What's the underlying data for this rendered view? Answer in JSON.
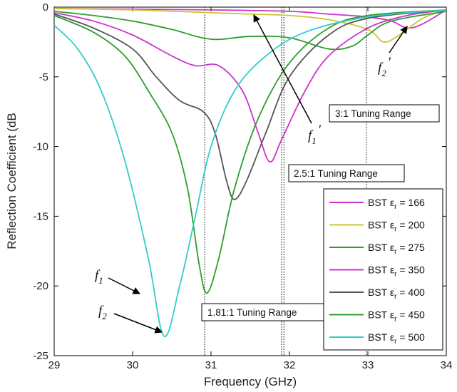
{
  "chart_data": {
    "type": "line",
    "xlabel": "Frequency (GHz)",
    "ylabel": "Reflection Coefficient (dB",
    "xlim": [
      29,
      34
    ],
    "ylim": [
      -25,
      0
    ],
    "xticks": [
      "29",
      "30",
      "31",
      "32",
      "33",
      "34"
    ],
    "yticks": [
      "0",
      "-5",
      "-10",
      "-15",
      "-20",
      "-25"
    ],
    "legend_position": "lower-right",
    "grid": false,
    "series": [
      {
        "name": "BST εr = 166",
        "label_prefix": "BST ε",
        "label_sub": "r",
        "label_suffix": " = 166",
        "color": "#cc33cc",
        "points": [
          [
            29,
            -0.1
          ],
          [
            30,
            -0.15
          ],
          [
            31,
            -0.2
          ],
          [
            32,
            -0.3
          ],
          [
            32.5,
            -0.5
          ],
          [
            33,
            -0.7
          ],
          [
            33.3,
            -1.0
          ],
          [
            33.5,
            -1.5
          ],
          [
            33.7,
            -1.2
          ],
          [
            34,
            -0.2
          ]
        ]
      },
      {
        "name": "BST εr = 200",
        "label_prefix": "BST ε",
        "label_sub": "r",
        "label_suffix": " = 200",
        "color": "#c8c832",
        "points": [
          [
            29,
            -0.1
          ],
          [
            30,
            -0.2
          ],
          [
            31,
            -0.4
          ],
          [
            31.5,
            -0.5
          ],
          [
            32,
            -0.6
          ],
          [
            32.5,
            -0.9
          ],
          [
            33,
            -1.6
          ],
          [
            33.2,
            -2.5
          ],
          [
            33.4,
            -2.0
          ],
          [
            33.7,
            -0.8
          ],
          [
            34,
            -0.2
          ]
        ]
      },
      {
        "name": "BST εr = 275",
        "label_prefix": "BST ε",
        "label_sub": "r",
        "label_suffix": " = 275",
        "color": "#2e9e2e",
        "points": [
          [
            29,
            -0.3
          ],
          [
            29.5,
            -0.6
          ],
          [
            30,
            -1.0
          ],
          [
            30.5,
            -1.6
          ],
          [
            31,
            -2.3
          ],
          [
            31.5,
            -2.1
          ],
          [
            32,
            -2.2
          ],
          [
            32.5,
            -3.0
          ],
          [
            32.8,
            -2.8
          ],
          [
            33,
            -2.0
          ],
          [
            33.3,
            -1.0
          ],
          [
            34,
            -0.3
          ]
        ]
      },
      {
        "name": "BST εr = 350",
        "label_prefix": "BST ε",
        "label_sub": "r",
        "label_suffix": " = 350",
        "color": "#cc33cc",
        "points": [
          [
            29,
            -0.4
          ],
          [
            29.5,
            -1.0
          ],
          [
            30,
            -2.0
          ],
          [
            30.5,
            -3.5
          ],
          [
            30.8,
            -4.2
          ],
          [
            31.1,
            -4.2
          ],
          [
            31.4,
            -6.0
          ],
          [
            31.6,
            -9.0
          ],
          [
            31.75,
            -11.1
          ],
          [
            31.9,
            -9.5
          ],
          [
            32.2,
            -6.0
          ],
          [
            32.5,
            -3.5
          ],
          [
            33,
            -1.5
          ],
          [
            33.5,
            -0.6
          ],
          [
            34,
            -0.2
          ]
        ]
      },
      {
        "name": "BST εr = 400",
        "label_prefix": "BST ε",
        "label_sub": "r",
        "label_suffix": " = 400",
        "color": "#555555",
        "points": [
          [
            29,
            -0.5
          ],
          [
            29.5,
            -1.5
          ],
          [
            30,
            -3.0
          ],
          [
            30.3,
            -5.0
          ],
          [
            30.6,
            -6.7
          ],
          [
            30.9,
            -7.5
          ],
          [
            31.05,
            -9.0
          ],
          [
            31.2,
            -12.5
          ],
          [
            31.3,
            -13.8
          ],
          [
            31.45,
            -12.5
          ],
          [
            31.7,
            -9.0
          ],
          [
            32,
            -5.0
          ],
          [
            32.5,
            -2.0
          ],
          [
            33,
            -0.8
          ],
          [
            34,
            -0.2
          ]
        ]
      },
      {
        "name": "BST εr = 450",
        "label_prefix": "BST ε",
        "label_sub": "r",
        "label_suffix": " = 450",
        "color": "#2e9e2e",
        "points": [
          [
            29,
            -0.6
          ],
          [
            29.5,
            -1.8
          ],
          [
            29.9,
            -3.5
          ],
          [
            30.2,
            -6.0
          ],
          [
            30.5,
            -9.0
          ],
          [
            30.7,
            -13.0
          ],
          [
            30.85,
            -18.5
          ],
          [
            30.95,
            -20.5
          ],
          [
            31.1,
            -18.0
          ],
          [
            31.3,
            -13.0
          ],
          [
            31.6,
            -8.0
          ],
          [
            32,
            -4.0
          ],
          [
            32.5,
            -1.5
          ],
          [
            33,
            -0.6
          ],
          [
            34,
            -0.2
          ]
        ]
      },
      {
        "name": "BST εr = 500",
        "label_prefix": "BST ε",
        "label_sub": "r",
        "label_suffix": " = 500",
        "color": "#33cccc",
        "points": [
          [
            29,
            -1.3
          ],
          [
            29.3,
            -3.0
          ],
          [
            29.6,
            -6.0
          ],
          [
            29.9,
            -11.0
          ],
          [
            30.2,
            -18.0
          ],
          [
            30.4,
            -23.6
          ],
          [
            30.6,
            -20.0
          ],
          [
            30.8,
            -15.0
          ],
          [
            31,
            -10.0
          ],
          [
            31.3,
            -6.0
          ],
          [
            31.7,
            -3.5
          ],
          [
            32.2,
            -1.8
          ],
          [
            33,
            -0.7
          ],
          [
            34,
            -0.2
          ]
        ]
      }
    ],
    "vlines": [
      30.92,
      31.9,
      31.93,
      32.98
    ],
    "annotations": {
      "range_1": "1.81:1 Tuning Range",
      "range_2": "2.5:1 Tuning Range",
      "range_3": "3:1 Tuning Range",
      "f1": "f",
      "f1_sub": "1",
      "f2": "f",
      "f2_sub": "2",
      "f1p": "f",
      "f1p_sub": "1",
      "f1p_prime": "'",
      "f2p": "f",
      "f2p_sub": "2",
      "f2p_prime": "'"
    }
  }
}
